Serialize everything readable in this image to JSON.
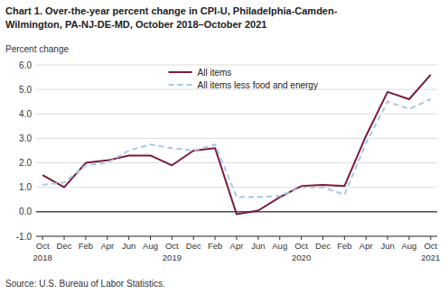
{
  "chart_data": {
    "type": "line",
    "title": "Chart 1. Over-the-year percent change in CPI-U, Philadelphia-Camden-",
    "subtitle": "Wilmington, PA-NJ-DE-MD,  October 2018–October  2021",
    "y_label": "Percent change",
    "source": "Source: U.S. Bureau of Labor Statistics.",
    "categories": [
      "Oct",
      "Dec",
      "Feb",
      "Apr",
      "Jun",
      "Aug",
      "Oct",
      "Dec",
      "Feb",
      "Apr",
      "Jun",
      "Aug",
      "Oct",
      "Dec",
      "Feb",
      "Apr",
      "Jun",
      "Aug",
      "Oct"
    ],
    "years": [
      "2018",
      null,
      null,
      null,
      null,
      null,
      "2019",
      null,
      null,
      null,
      null,
      null,
      "2020",
      null,
      null,
      null,
      null,
      null,
      "2021"
    ],
    "series": [
      {
        "name": "All items",
        "color": "#7B1A3A",
        "line_style": "solid",
        "values": [
          1.5,
          1.0,
          2.0,
          2.1,
          2.3,
          2.3,
          1.9,
          2.5,
          2.6,
          -0.1,
          0.05,
          0.6,
          1.05,
          1.1,
          1.05,
          3.1,
          4.9,
          4.6,
          5.6
        ]
      },
      {
        "name": "All items less food and energy",
        "color": "#A8C8E8",
        "line_style": "dashed",
        "values": [
          1.1,
          1.2,
          1.9,
          2.0,
          2.5,
          2.75,
          2.6,
          2.5,
          2.75,
          0.6,
          0.6,
          0.65,
          1.0,
          1.0,
          0.7,
          2.8,
          4.5,
          4.2,
          4.6
        ]
      }
    ],
    "ylim": [
      -1.0,
      6.0
    ],
    "yticks": [
      {
        "value": -1.0,
        "label": "-1.0"
      },
      {
        "value": 0.0,
        "label": "0.0"
      },
      {
        "value": 1.0,
        "label": "1.0"
      },
      {
        "value": 2.0,
        "label": "2.0"
      },
      {
        "value": 3.0,
        "label": "3.0"
      },
      {
        "value": 4.0,
        "label": "4.0"
      },
      {
        "value": 5.0,
        "label": "5.0"
      },
      {
        "value": 6.0,
        "label": "6.0"
      }
    ],
    "grid": true,
    "legend": "upper center"
  }
}
